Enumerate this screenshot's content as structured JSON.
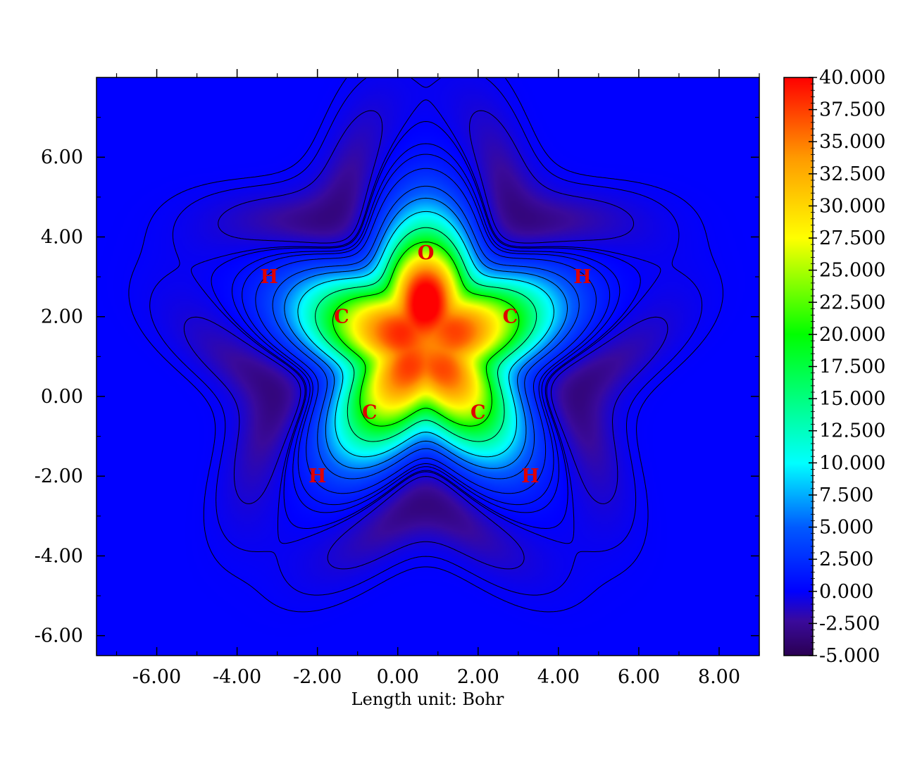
{
  "chart_data": {
    "type": "heatmap",
    "title": "",
    "xlabel": "Length unit: Bohr",
    "ylabel": "",
    "xlim": [
      -7.5,
      9.0
    ],
    "ylim": [
      -6.5,
      8.0
    ],
    "x_ticks": [
      "-6.00",
      "-4.00",
      "-2.00",
      "0.00",
      "2.00",
      "4.00",
      "6.00",
      "8.00"
    ],
    "x_tick_values": [
      -6,
      -4,
      -2,
      0,
      2,
      4,
      6,
      8
    ],
    "y_ticks": [
      "-6.00",
      "-4.00",
      "-2.00",
      "0.00",
      "2.00",
      "4.00",
      "6.00"
    ],
    "y_tick_values": [
      -6,
      -4,
      -2,
      0,
      2,
      4,
      6
    ],
    "colorbar": {
      "min": -5.0,
      "max": 40.0,
      "ticks": [
        "40.000",
        "37.500",
        "35.000",
        "32.500",
        "30.000",
        "27.500",
        "25.000",
        "22.500",
        "20.000",
        "17.500",
        "15.000",
        "12.500",
        "10.000",
        "7.500",
        "5.000",
        "2.500",
        "0.000",
        "-2.500",
        "-5.000"
      ],
      "tick_values": [
        40,
        37.5,
        35,
        32.5,
        30,
        27.5,
        25,
        22.5,
        20,
        17.5,
        15,
        12.5,
        10,
        7.5,
        5,
        2.5,
        0,
        -2.5,
        -5
      ]
    },
    "atoms": [
      {
        "label": "O",
        "x": 0.7,
        "y": 3.6
      },
      {
        "label": "C",
        "x": -1.4,
        "y": 2.0
      },
      {
        "label": "C",
        "x": 2.8,
        "y": 2.0
      },
      {
        "label": "C",
        "x": -0.7,
        "y": -0.4
      },
      {
        "label": "C",
        "x": 2.0,
        "y": -0.4
      },
      {
        "label": "H",
        "x": -3.2,
        "y": 3.0
      },
      {
        "label": "H",
        "x": 4.6,
        "y": 3.0
      },
      {
        "label": "H",
        "x": -2.0,
        "y": -2.0
      },
      {
        "label": "H",
        "x": 3.3,
        "y": -2.0
      }
    ],
    "positive_contours": [
      0.5,
      1.0,
      2.0,
      4.0,
      6.0,
      9.0,
      14.0,
      20.0
    ],
    "negative_contours": [
      -0.1,
      -0.3,
      -1.0
    ],
    "grid": false,
    "legend": "colorbar-right"
  }
}
